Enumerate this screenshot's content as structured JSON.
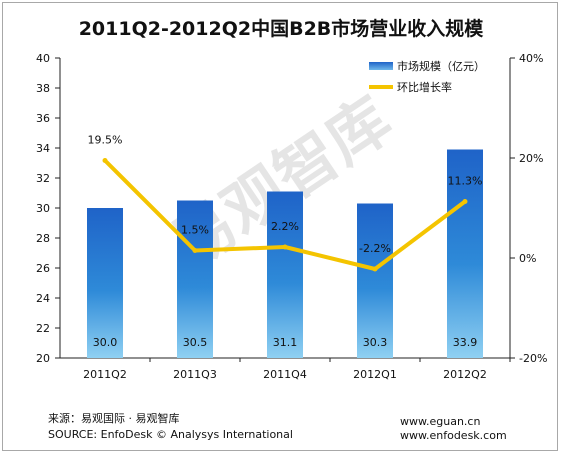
{
  "chart_data": {
    "type": "bar",
    "title": "2011Q2-2012Q2中国B2B市场营业收入规模",
    "categories": [
      "2011Q2",
      "2011Q3",
      "2011Q4",
      "2012Q1",
      "2012Q2"
    ],
    "series": [
      {
        "name": "市场规模（亿元）",
        "type": "bar",
        "axis": "left",
        "values": [
          30.0,
          30.5,
          31.1,
          30.3,
          33.9
        ],
        "labels": [
          "30.0",
          "30.5",
          "31.1",
          "30.3",
          "33.9"
        ],
        "color": "#1f6fd0"
      },
      {
        "name": "环比增长率",
        "type": "line",
        "axis": "right",
        "values": [
          19.5,
          1.5,
          2.2,
          -2.2,
          11.3
        ],
        "labels": [
          "19.5%",
          "1.5%",
          "2.2%",
          "-2.2%",
          "11.3%"
        ],
        "color": "#f4c400"
      }
    ],
    "y_left": {
      "min": 20,
      "max": 40,
      "ticks": [
        "20",
        "22",
        "24",
        "26",
        "28",
        "30",
        "32",
        "34",
        "36",
        "38",
        "40"
      ]
    },
    "y_right": {
      "min": -20,
      "max": 40,
      "ticks": [
        "-20%",
        "0%",
        "20%",
        "40%"
      ]
    },
    "grid": false,
    "legend": "top-right"
  },
  "source": {
    "line1": "来源：易观国际 · 易观智库",
    "line2": "SOURCE: EnfoDesk © Analysys International",
    "url1": "www.eguan.cn",
    "url2": "www.enfodesk.com"
  },
  "watermark": "易观智库"
}
